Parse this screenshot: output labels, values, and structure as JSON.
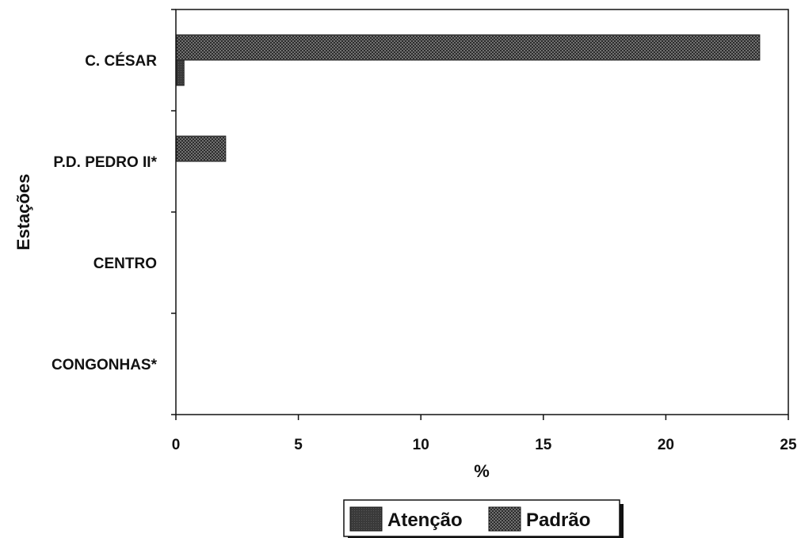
{
  "chart_data": {
    "type": "bar",
    "orientation": "horizontal",
    "categories": [
      "C. CÉSAR",
      "P.D. PEDRO II*",
      "CENTRO",
      "CONGONHAS*"
    ],
    "series": [
      {
        "name": "Atenção",
        "values": [
          0.3,
          0.0,
          0.0,
          0.0
        ],
        "color": "#3a3a3a",
        "pattern": "solid-dark"
      },
      {
        "name": "Padrão",
        "values": [
          23.8,
          2.0,
          0.0,
          0.0
        ],
        "color": "#4a4a4a",
        "pattern": "crosshatch"
      }
    ],
    "xlabel": "%",
    "ylabel": "Estações",
    "xlim": [
      0,
      25
    ],
    "xticks": [
      "0",
      "5",
      "10",
      "15",
      "20",
      "25"
    ],
    "grid": false,
    "legend_position": "bottom-center"
  }
}
